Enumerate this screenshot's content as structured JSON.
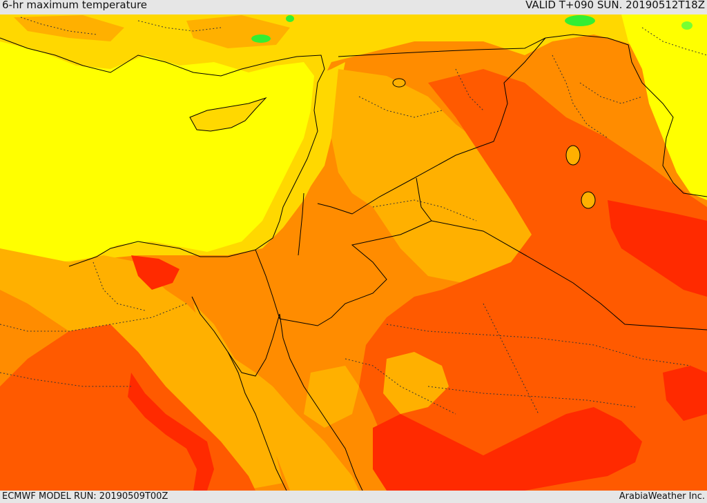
{
  "header": {
    "title": "6-hr maximum temperature",
    "valid_time": "VALID T+090 SUN. 20190512T18Z"
  },
  "footer": {
    "model_run": "ECMWF MODEL RUN: 20190509T00Z",
    "credit": "ArabiaWeather Inc."
  },
  "map": {
    "field": "temperature",
    "palette": {
      "yellow_bright": "#ffff00",
      "yellow_gold": "#ffd800",
      "orange_light": "#ffb000",
      "orange": "#ff8c00",
      "orange_dark": "#ff5a00",
      "red": "#ff2a00",
      "green": "#33ee33",
      "border": "#000000"
    }
  }
}
